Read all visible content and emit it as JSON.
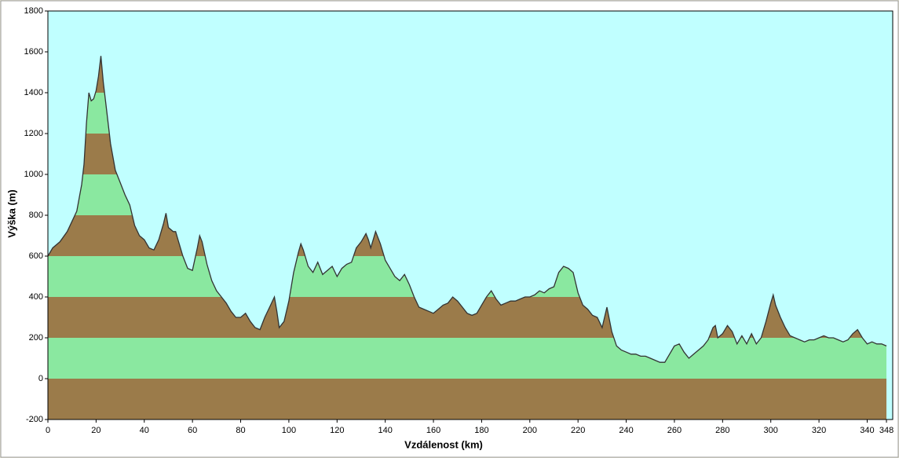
{
  "chart_data": {
    "type": "area",
    "x_label": "Vzdálenost  (km)",
    "y_label": "Výška (m)",
    "x": [
      0,
      2,
      5,
      8,
      10,
      12,
      14,
      15,
      16,
      17,
      18,
      19,
      20,
      21,
      22,
      23,
      24,
      26,
      28,
      30,
      32,
      34,
      36,
      38,
      40,
      42,
      44,
      46,
      48,
      49,
      50,
      52,
      53,
      54,
      56,
      58,
      60,
      62,
      63,
      64,
      66,
      68,
      70,
      72,
      74,
      76,
      78,
      80,
      82,
      84,
      86,
      88,
      90,
      92,
      94,
      95,
      96,
      98,
      100,
      102,
      104,
      105,
      106,
      108,
      110,
      112,
      114,
      116,
      118,
      120,
      122,
      124,
      126,
      128,
      130,
      132,
      133,
      134,
      136,
      138,
      140,
      142,
      144,
      146,
      148,
      150,
      152,
      154,
      156,
      158,
      160,
      162,
      164,
      166,
      168,
      170,
      172,
      174,
      176,
      178,
      180,
      182,
      184,
      186,
      188,
      190,
      192,
      194,
      196,
      198,
      200,
      202,
      204,
      206,
      208,
      210,
      212,
      214,
      216,
      218,
      220,
      222,
      224,
      226,
      228,
      230,
      232,
      234,
      236,
      238,
      240,
      242,
      244,
      246,
      248,
      250,
      252,
      254,
      256,
      258,
      260,
      262,
      264,
      266,
      268,
      270,
      272,
      274,
      276,
      277,
      278,
      280,
      282,
      284,
      286,
      288,
      290,
      292,
      294,
      296,
      298,
      300,
      301,
      302,
      304,
      306,
      308,
      310,
      312,
      314,
      316,
      318,
      320,
      322,
      324,
      326,
      328,
      330,
      332,
      334,
      336,
      338,
      340,
      342,
      344,
      346,
      348
    ],
    "values": [
      600,
      640,
      670,
      720,
      770,
      820,
      950,
      1050,
      1250,
      1400,
      1360,
      1370,
      1410,
      1480,
      1580,
      1450,
      1350,
      1150,
      1020,
      960,
      900,
      850,
      750,
      700,
      680,
      640,
      630,
      680,
      760,
      810,
      740,
      720,
      720,
      680,
      600,
      540,
      530,
      640,
      700,
      670,
      560,
      480,
      430,
      400,
      370,
      330,
      300,
      300,
      320,
      280,
      250,
      240,
      300,
      350,
      400,
      330,
      250,
      280,
      380,
      520,
      620,
      660,
      630,
      550,
      520,
      570,
      510,
      530,
      550,
      500,
      540,
      560,
      570,
      640,
      670,
      710,
      680,
      640,
      720,
      660,
      580,
      540,
      500,
      480,
      510,
      460,
      400,
      350,
      340,
      330,
      320,
      340,
      360,
      370,
      400,
      380,
      350,
      320,
      310,
      320,
      360,
      400,
      430,
      390,
      360,
      370,
      380,
      380,
      390,
      400,
      400,
      410,
      430,
      420,
      440,
      450,
      520,
      550,
      540,
      520,
      420,
      360,
      340,
      310,
      300,
      250,
      350,
      230,
      160,
      140,
      130,
      120,
      120,
      110,
      110,
      100,
      90,
      80,
      80,
      120,
      160,
      170,
      130,
      100,
      120,
      140,
      160,
      190,
      250,
      260,
      200,
      220,
      260,
      230,
      170,
      210,
      170,
      220,
      170,
      200,
      280,
      370,
      410,
      360,
      300,
      250,
      210,
      200,
      190,
      180,
      190,
      190,
      200,
      210,
      200,
      200,
      190,
      180,
      190,
      220,
      240,
      200,
      170,
      180,
      170,
      170,
      160
    ],
    "xlim": [
      0,
      350.6
    ],
    "ylim": [
      -200,
      1800
    ],
    "xticks": [
      0,
      20,
      40,
      60,
      80,
      100,
      120,
      140,
      160,
      180,
      200,
      220,
      240,
      260,
      280,
      300,
      320,
      340,
      348
    ],
    "yticks": [
      -200,
      0,
      200,
      400,
      600,
      800,
      1000,
      1200,
      1400,
      1600,
      1800
    ],
    "band_colors": [
      "#9b7b4a",
      "#8ae8a0"
    ],
    "background": "#c0ffff",
    "line_color": "#333333"
  }
}
